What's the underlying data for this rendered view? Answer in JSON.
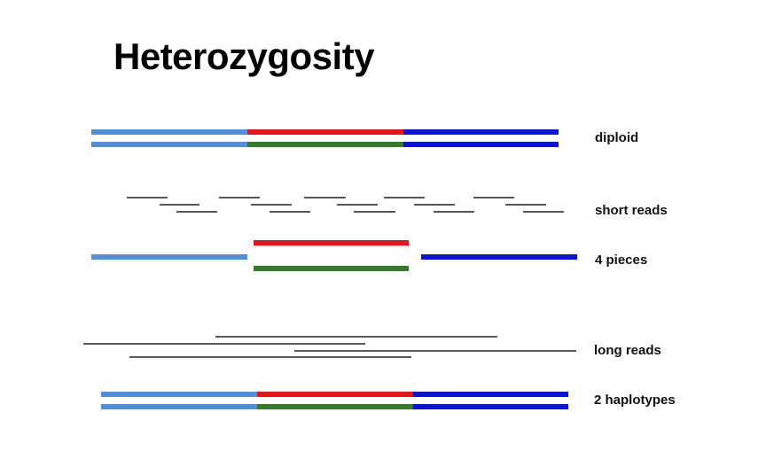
{
  "title": "Heterozygosity",
  "labels": {
    "diploid": "diploid",
    "short_reads": "short reads",
    "pieces": "4 pieces",
    "long_reads": "long reads",
    "haplotypes": "2 haplotypes"
  },
  "colors": {
    "light_blue": "#4f8fdc",
    "red": "#e8121a",
    "green": "#347a2a",
    "dark_blue": "#0a14d8",
    "read_gray": "#555555"
  }
}
